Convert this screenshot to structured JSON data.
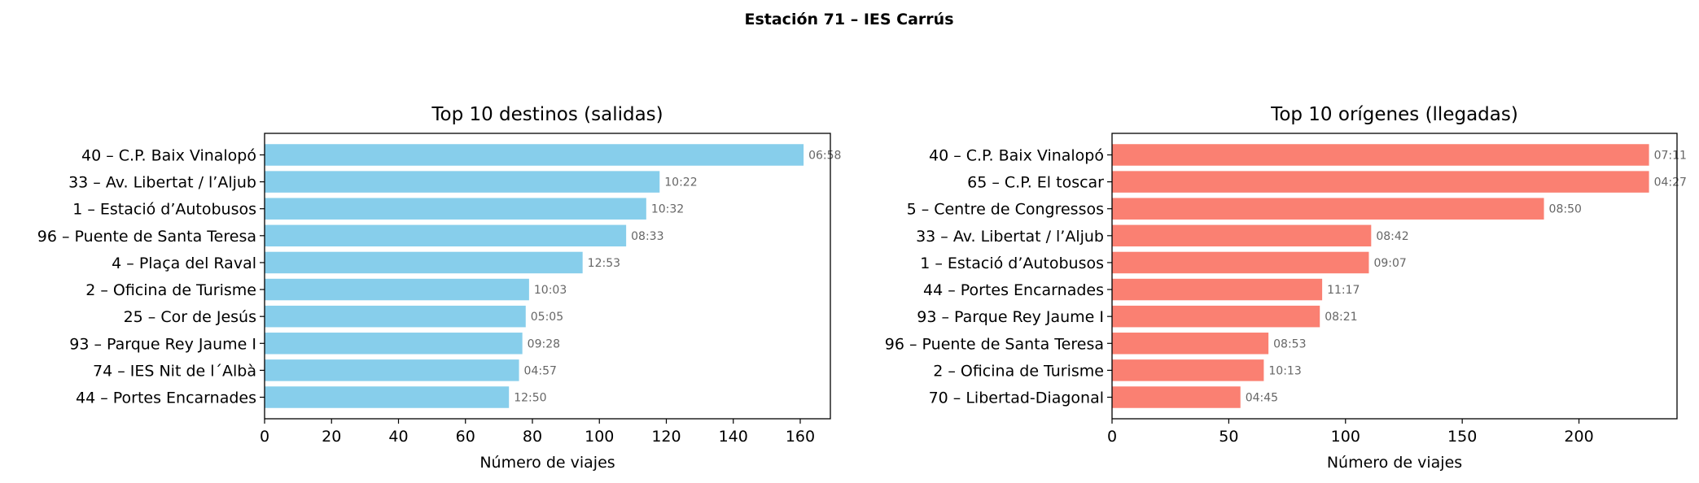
{
  "suptitle": "Estación 71 – IES Carrús",
  "chart_data": [
    {
      "type": "bar",
      "orientation": "horizontal",
      "title": "Top 10 destinos (salidas)",
      "xlabel": "Número de viajes",
      "ylabel": "",
      "color": "#87ceeb",
      "xlim": [
        0,
        169
      ],
      "xticks": [
        0,
        20,
        40,
        60,
        80,
        100,
        120,
        140,
        160
      ],
      "categories": [
        "40 – C.P. Baix Vinalopó",
        "33 – Av. Libertat / l’Aljub",
        "1 – Estació d’Autobusos",
        "96 – Puente de Santa Teresa",
        "4 – Plaça del Raval",
        "2 – Oficina de Turisme",
        "25 – Cor de Jesús",
        "93 – Parque Rey Jaume I",
        "74 – IES Nit de l´Albà",
        "44 – Portes Encarnades"
      ],
      "values": [
        161,
        118,
        114,
        108,
        95,
        79,
        78,
        77,
        76,
        73
      ],
      "bar_labels": [
        "06:58",
        "10:22",
        "10:32",
        "08:33",
        "12:53",
        "10:03",
        "05:05",
        "09:28",
        "04:57",
        "12:50"
      ]
    },
    {
      "type": "bar",
      "orientation": "horizontal",
      "title": "Top 10 orígenes (llegadas)",
      "xlabel": "Número de viajes",
      "ylabel": "",
      "color": "#fa8072",
      "xlim": [
        0,
        242
      ],
      "xticks": [
        0,
        50,
        100,
        150,
        200
      ],
      "categories": [
        "40 – C.P. Baix Vinalopó",
        "65 – C.P. El toscar",
        "5 – Centre de Congressos",
        "33 – Av. Libertat / l’Aljub",
        "1 – Estació d’Autobusos",
        "44 – Portes Encarnades",
        "93 – Parque Rey Jaume I",
        "96 – Puente de Santa Teresa",
        "2 – Oficina de Turisme",
        "70 – Libertad-Diagonal"
      ],
      "values": [
        230,
        230,
        185,
        111,
        110,
        90,
        89,
        67,
        65,
        55
      ],
      "bar_labels": [
        "07:11",
        "04:27",
        "08:50",
        "08:42",
        "09:07",
        "11:17",
        "08:21",
        "08:53",
        "10:13",
        "04:45"
      ]
    }
  ]
}
